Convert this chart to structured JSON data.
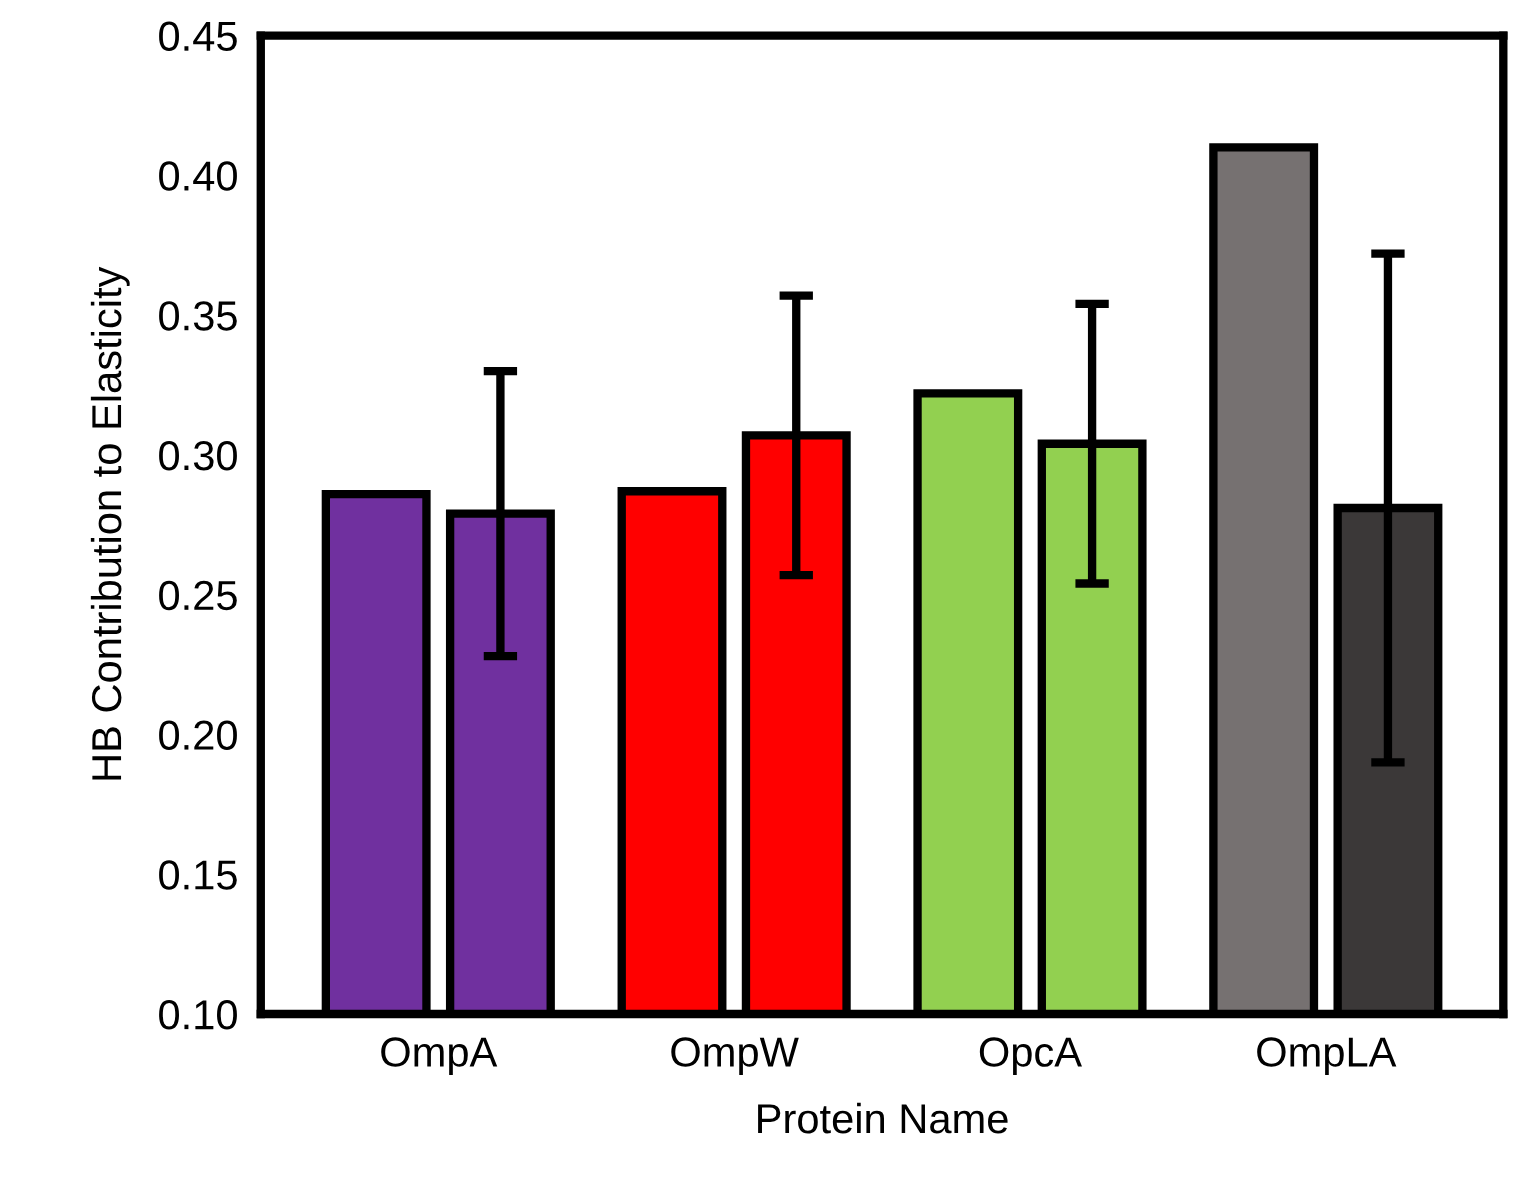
{
  "chart_data": {
    "type": "bar",
    "xlabel": "Protein Name",
    "ylabel": "HB Contribution to Elasticity",
    "categories": [
      "OmpA",
      "OmpW",
      "OpcA",
      "OmpLA"
    ],
    "series": [
      {
        "colors": [
          "#70309f",
          "#ff0000",
          "#92d050",
          "#767171"
        ],
        "values": [
          0.286,
          0.287,
          0.322,
          0.41
        ]
      },
      {
        "colors": [
          "#70309f",
          "#ff0000",
          "#92d050",
          "#3b3838"
        ],
        "values": [
          0.279,
          0.307,
          0.304,
          0.281
        ],
        "errors": [
          0.051,
          0.05,
          0.05,
          0.091
        ]
      }
    ],
    "ylim": [
      0.1,
      0.45
    ],
    "yticks": [
      {
        "value": 0.1,
        "label": "0.10"
      },
      0.15,
      {
        "value": 0.2,
        "label": "0.20"
      },
      0.25,
      {
        "value": 0.3,
        "label": "0.30"
      },
      0.35,
      {
        "value": 0.4,
        "label": "0.40"
      },
      0.45
    ],
    "grid": false
  }
}
